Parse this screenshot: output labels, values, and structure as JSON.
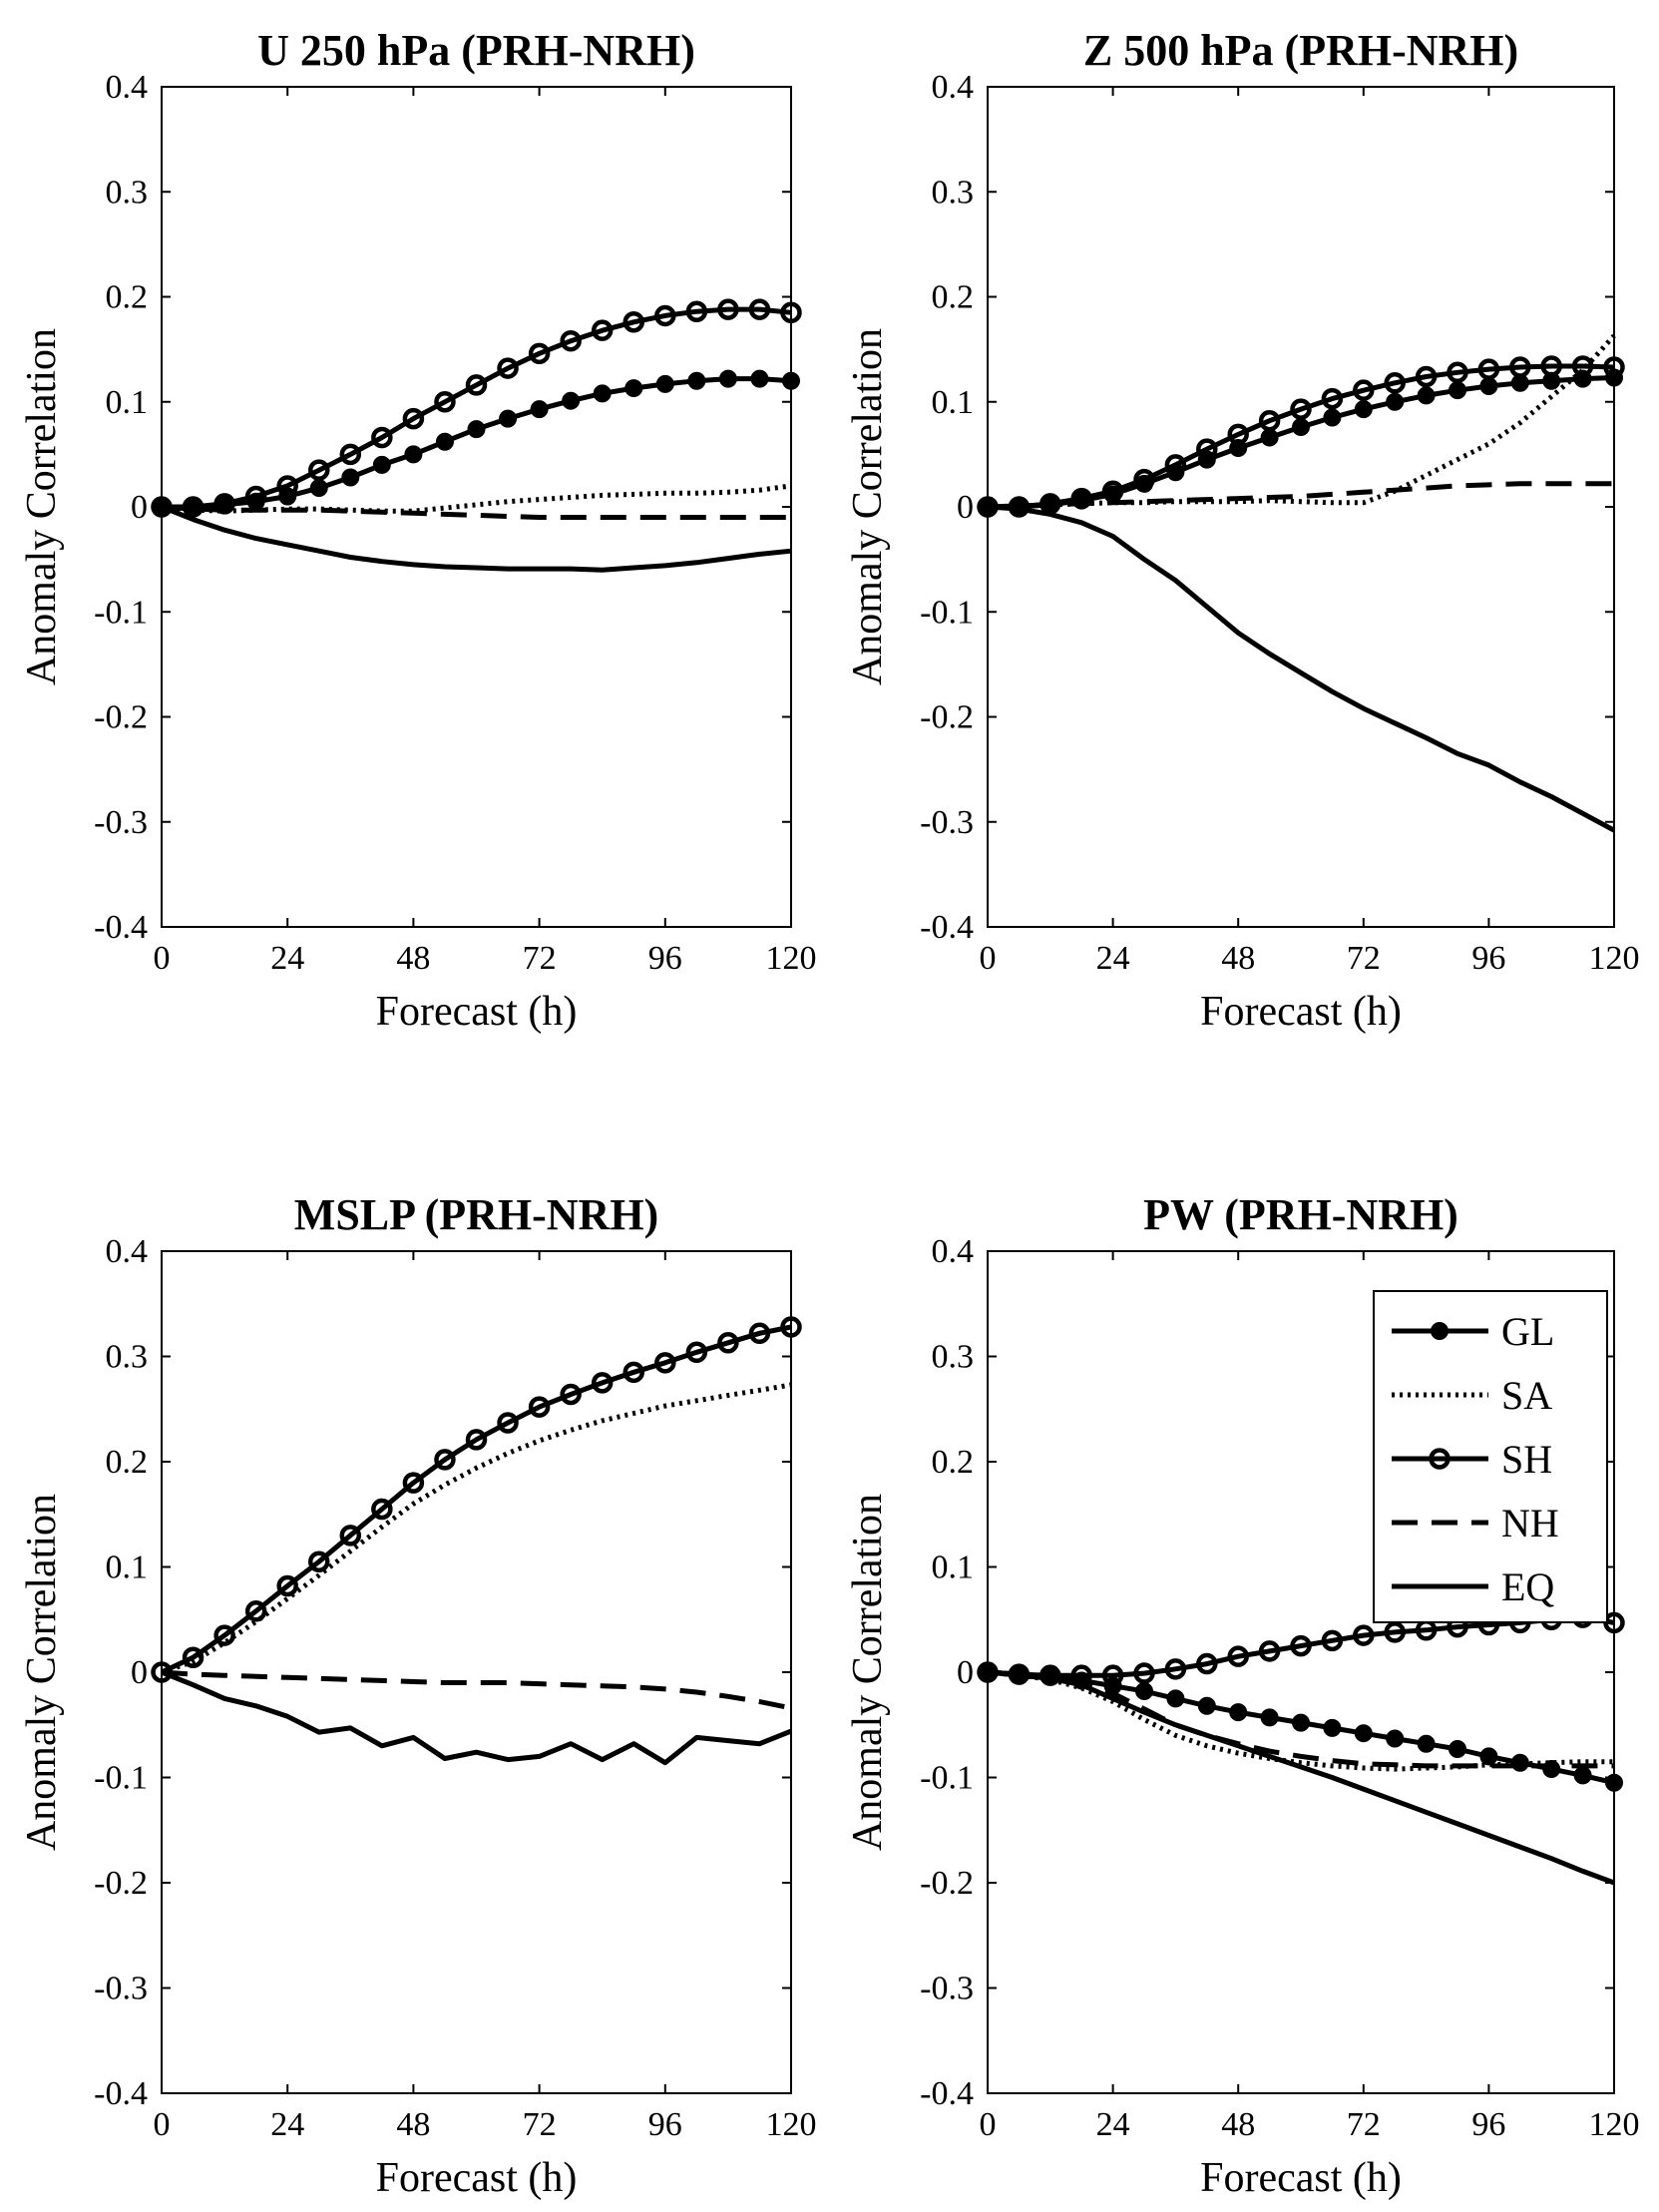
{
  "chart_data": [
    {
      "type": "line",
      "title": "U 250 hPa (PRH-NRH)",
      "xlabel": "Forecast (h)",
      "ylabel": "Anomaly Correlation",
      "xlim": [
        0,
        120
      ],
      "ylim": [
        -0.4,
        0.4
      ],
      "xticks": [
        "0",
        "24",
        "48",
        "72",
        "96",
        "120"
      ],
      "yticks": [
        "0.4",
        "0.3",
        "0.2",
        "0.1",
        "0",
        "-0.1",
        "-0.2",
        "-0.3",
        "-0.4"
      ],
      "x": [
        0,
        6,
        12,
        18,
        24,
        30,
        36,
        42,
        48,
        54,
        60,
        66,
        72,
        78,
        84,
        90,
        96,
        102,
        108,
        114,
        120
      ],
      "series": [
        {
          "name": "GL",
          "style": "solid-dot",
          "values": [
            0,
            0,
            0.002,
            0.005,
            0.01,
            0.018,
            0.028,
            0.04,
            0.05,
            0.062,
            0.074,
            0.084,
            0.093,
            0.101,
            0.108,
            0.113,
            0.117,
            0.12,
            0.122,
            0.122,
            0.12
          ]
        },
        {
          "name": "SA",
          "style": "dotted",
          "values": [
            0,
            -0.003,
            -0.004,
            -0.003,
            -0.002,
            -0.002,
            -0.003,
            -0.004,
            -0.004,
            -0.001,
            0.002,
            0.005,
            0.007,
            0.009,
            0.011,
            0.012,
            0.013,
            0.013,
            0.014,
            0.016,
            0.02
          ]
        },
        {
          "name": "SH",
          "style": "solid-circle",
          "values": [
            0,
            0,
            0.003,
            0.01,
            0.02,
            0.035,
            0.05,
            0.066,
            0.084,
            0.1,
            0.116,
            0.132,
            0.146,
            0.158,
            0.168,
            0.176,
            0.182,
            0.186,
            0.188,
            0.188,
            0.185
          ]
        },
        {
          "name": "NH",
          "style": "dashed",
          "values": [
            0,
            -0.002,
            -0.003,
            -0.003,
            -0.003,
            -0.003,
            -0.004,
            -0.005,
            -0.006,
            -0.007,
            -0.008,
            -0.009,
            -0.01,
            -0.01,
            -0.01,
            -0.01,
            -0.01,
            -0.01,
            -0.01,
            -0.01,
            -0.01
          ]
        },
        {
          "name": "EQ",
          "style": "solid",
          "values": [
            0,
            -0.012,
            -0.022,
            -0.03,
            -0.036,
            -0.042,
            -0.048,
            -0.052,
            -0.055,
            -0.057,
            -0.058,
            -0.059,
            -0.059,
            -0.059,
            -0.06,
            -0.058,
            -0.056,
            -0.053,
            -0.049,
            -0.045,
            -0.042
          ]
        }
      ]
    },
    {
      "type": "line",
      "title": "Z 500 hPa (PRH-NRH)",
      "xlabel": "Forecast (h)",
      "ylabel": "Anomaly Correlation",
      "xlim": [
        0,
        120
      ],
      "ylim": [
        -0.4,
        0.4
      ],
      "xticks": [
        "0",
        "24",
        "48",
        "72",
        "96",
        "120"
      ],
      "yticks": [
        "0.4",
        "0.3",
        "0.2",
        "0.1",
        "0",
        "-0.1",
        "-0.2",
        "-0.3",
        "-0.4"
      ],
      "x": [
        0,
        6,
        12,
        18,
        24,
        30,
        36,
        42,
        48,
        54,
        60,
        66,
        72,
        78,
        84,
        90,
        96,
        102,
        108,
        114,
        120
      ],
      "series": [
        {
          "name": "GL",
          "style": "solid-dot",
          "values": [
            0,
            0,
            0.002,
            0.006,
            0.012,
            0.022,
            0.033,
            0.045,
            0.056,
            0.066,
            0.076,
            0.085,
            0.093,
            0.1,
            0.106,
            0.111,
            0.115,
            0.118,
            0.12,
            0.122,
            0.123
          ]
        },
        {
          "name": "SA",
          "style": "dotted",
          "values": [
            0,
            0.001,
            0.002,
            0.003,
            0.004,
            0.004,
            0.005,
            0.005,
            0.005,
            0.006,
            0.005,
            0.004,
            0.004,
            0.015,
            0.03,
            0.045,
            0.06,
            0.08,
            0.105,
            0.13,
            0.163
          ]
        },
        {
          "name": "SH",
          "style": "solid-circle",
          "values": [
            0,
            0,
            0.003,
            0.008,
            0.015,
            0.026,
            0.04,
            0.055,
            0.069,
            0.082,
            0.093,
            0.103,
            0.111,
            0.118,
            0.124,
            0.128,
            0.131,
            0.133,
            0.134,
            0.134,
            0.133
          ]
        },
        {
          "name": "NH",
          "style": "dashed",
          "values": [
            0,
            0.001,
            0.002,
            0.003,
            0.004,
            0.005,
            0.006,
            0.007,
            0.008,
            0.009,
            0.01,
            0.012,
            0.014,
            0.016,
            0.018,
            0.02,
            0.021,
            0.022,
            0.022,
            0.022,
            0.022
          ]
        },
        {
          "name": "EQ",
          "style": "solid",
          "values": [
            0,
            -0.002,
            -0.007,
            -0.015,
            -0.028,
            -0.05,
            -0.07,
            -0.095,
            -0.12,
            -0.14,
            -0.158,
            -0.176,
            -0.192,
            -0.206,
            -0.22,
            -0.235,
            -0.246,
            -0.262,
            -0.276,
            -0.292,
            -0.308
          ]
        }
      ]
    },
    {
      "type": "line",
      "title": "MSLP (PRH-NRH)",
      "xlabel": "Forecast (h)",
      "ylabel": "Anomaly Correlation",
      "xlim": [
        0,
        120
      ],
      "ylim": [
        -0.4,
        0.4
      ],
      "xticks": [
        "0",
        "24",
        "48",
        "72",
        "96",
        "120"
      ],
      "yticks": [
        "0.4",
        "0.3",
        "0.2",
        "0.1",
        "0",
        "-0.1",
        "-0.2",
        "-0.3",
        "-0.4"
      ],
      "x": [
        0,
        6,
        12,
        18,
        24,
        30,
        36,
        42,
        48,
        54,
        60,
        66,
        72,
        78,
        84,
        90,
        96,
        102,
        108,
        114,
        120
      ],
      "series": [
        {
          "name": "SA",
          "style": "dotted",
          "values": [
            0,
            0.01,
            0.028,
            0.048,
            0.07,
            0.092,
            0.115,
            0.138,
            0.16,
            0.178,
            0.194,
            0.208,
            0.22,
            0.23,
            0.239,
            0.246,
            0.253,
            0.258,
            0.263,
            0.268,
            0.273
          ]
        },
        {
          "name": "SH",
          "style": "solid-circle",
          "values": [
            0,
            0.014,
            0.035,
            0.058,
            0.082,
            0.105,
            0.13,
            0.155,
            0.18,
            0.202,
            0.221,
            0.237,
            0.252,
            0.264,
            0.275,
            0.285,
            0.294,
            0.304,
            0.313,
            0.322,
            0.328
          ]
        },
        {
          "name": "NH",
          "style": "dashed",
          "values": [
            0,
            -0.002,
            -0.003,
            -0.004,
            -0.005,
            -0.006,
            -0.007,
            -0.008,
            -0.009,
            -0.01,
            -0.01,
            -0.01,
            -0.011,
            -0.012,
            -0.013,
            -0.014,
            -0.016,
            -0.019,
            -0.023,
            -0.028,
            -0.034
          ]
        },
        {
          "name": "EQ",
          "style": "solid",
          "values": [
            0,
            -0.012,
            -0.025,
            -0.032,
            -0.042,
            -0.057,
            -0.053,
            -0.07,
            -0.062,
            -0.082,
            -0.076,
            -0.083,
            -0.08,
            -0.068,
            -0.083,
            -0.068,
            -0.086,
            -0.062,
            -0.065,
            -0.068,
            -0.056
          ]
        }
      ]
    },
    {
      "type": "line",
      "title": "PW (PRH-NRH)",
      "xlabel": "Forecast (h)",
      "ylabel": "Anomaly Correlation",
      "xlim": [
        0,
        120
      ],
      "ylim": [
        -0.4,
        0.4
      ],
      "xticks": [
        "0",
        "24",
        "48",
        "72",
        "96",
        "120"
      ],
      "yticks": [
        "0.4",
        "0.3",
        "0.2",
        "0.1",
        "0",
        "-0.1",
        "-0.2",
        "-0.3",
        "-0.4"
      ],
      "legend": {
        "position": "top-right",
        "entries": [
          "GL",
          "SA",
          "SH",
          "NH",
          "EQ"
        ]
      },
      "x": [
        0,
        6,
        12,
        18,
        24,
        30,
        36,
        42,
        48,
        54,
        60,
        66,
        72,
        78,
        84,
        90,
        96,
        102,
        108,
        114,
        120
      ],
      "series": [
        {
          "name": "GL",
          "style": "solid-dot",
          "values": [
            0,
            -0.002,
            -0.004,
            -0.008,
            -0.013,
            -0.018,
            -0.025,
            -0.032,
            -0.038,
            -0.043,
            -0.048,
            -0.053,
            -0.058,
            -0.063,
            -0.068,
            -0.073,
            -0.08,
            -0.086,
            -0.092,
            -0.098,
            -0.105
          ]
        },
        {
          "name": "SA",
          "style": "dotted",
          "values": [
            0,
            -0.003,
            -0.007,
            -0.015,
            -0.028,
            -0.045,
            -0.06,
            -0.07,
            -0.077,
            -0.082,
            -0.086,
            -0.089,
            -0.091,
            -0.092,
            -0.091,
            -0.09,
            -0.088,
            -0.087,
            -0.086,
            -0.085,
            -0.085
          ]
        },
        {
          "name": "SH",
          "style": "solid-circle",
          "values": [
            0,
            -0.002,
            -0.003,
            -0.003,
            -0.003,
            -0.001,
            0.003,
            0.008,
            0.015,
            0.02,
            0.025,
            0.03,
            0.035,
            0.038,
            0.04,
            0.043,
            0.045,
            0.047,
            0.05,
            0.052,
            0.047
          ]
        },
        {
          "name": "NH",
          "style": "dashed",
          "values": [
            0,
            -0.002,
            -0.005,
            -0.01,
            -0.02,
            -0.035,
            -0.05,
            -0.06,
            -0.068,
            -0.075,
            -0.08,
            -0.084,
            -0.087,
            -0.088,
            -0.089,
            -0.089,
            -0.089,
            -0.089,
            -0.089,
            -0.089,
            -0.089
          ]
        },
        {
          "name": "EQ",
          "style": "solid",
          "values": [
            0,
            -0.003,
            -0.006,
            -0.012,
            -0.025,
            -0.038,
            -0.05,
            -0.06,
            -0.07,
            -0.08,
            -0.09,
            -0.1,
            -0.111,
            -0.122,
            -0.133,
            -0.144,
            -0.155,
            -0.166,
            -0.177,
            -0.189,
            -0.2
          ]
        }
      ]
    }
  ]
}
